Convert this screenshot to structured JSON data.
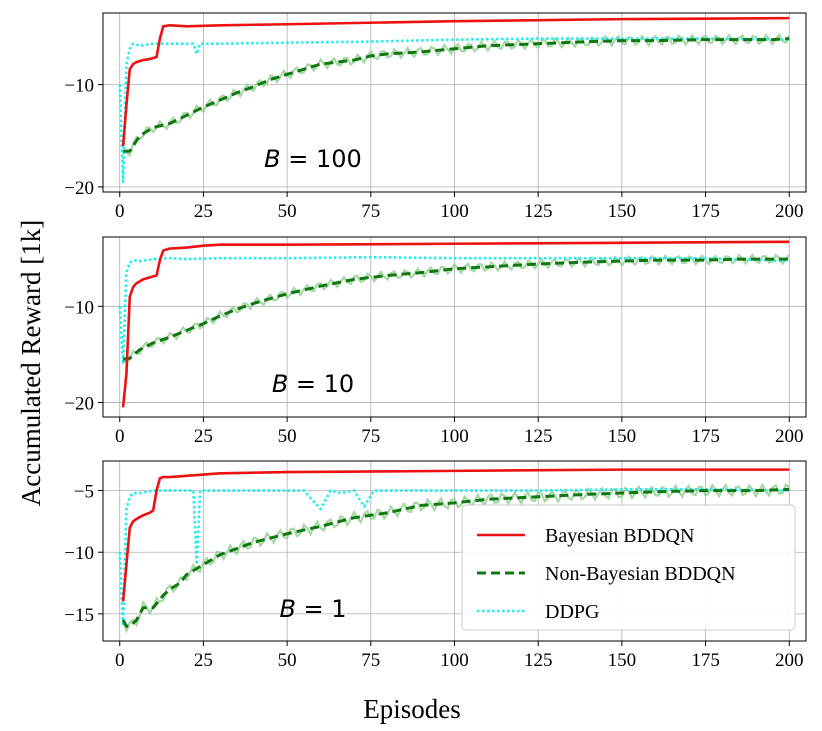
{
  "chart_data": {
    "type": "line",
    "ylabel": "Accumulated Reward [1k]",
    "xlabel": "Episodes",
    "xlim": [
      -5,
      205
    ],
    "xticks": [
      0,
      25,
      50,
      75,
      100,
      125,
      150,
      175,
      200
    ],
    "xtick_labels": [
      "0",
      "25",
      "50",
      "75",
      "100",
      "125",
      "150",
      "175",
      "200"
    ],
    "grid": true,
    "legend": {
      "placement": "bottom-right of lowest panel",
      "entries": [
        {
          "label": "Bayesian BDDQN",
          "color": "#ee1111",
          "style": "solid"
        },
        {
          "label": "Non-Bayesian BDDQN",
          "color": "#117711",
          "style": "dashed"
        },
        {
          "label": "DDPG",
          "color": "#22eeee",
          "style": "dotted"
        }
      ]
    },
    "panels": [
      {
        "annotation_var": "B",
        "annotation_eq": " = 100",
        "ylim": [
          -20.5,
          -3
        ],
        "yticks": [
          -10,
          -20
        ],
        "ytick_labels": [
          "−10",
          "−20"
        ],
        "series": [
          {
            "name": "Bayesian BDDQN",
            "x": [
              1,
              2,
              3,
              4,
              5,
              7,
              9,
              11,
              12,
              13,
              15,
              20,
              30,
              50,
              100,
              150,
              200
            ],
            "y": [
              -16,
              -12,
              -8.5,
              -8,
              -7.8,
              -7.6,
              -7.5,
              -7.3,
              -5.5,
              -4.3,
              -4.2,
              -4.3,
              -4.2,
              -4.1,
              -3.8,
              -3.6,
              -3.5
            ]
          },
          {
            "name": "Non-Bayesian BDDQN",
            "x": [
              1,
              3,
              6,
              10,
              15,
              20,
              25,
              30,
              35,
              40,
              45,
              50,
              60,
              70,
              75,
              80,
              90,
              100,
              110,
              125,
              140,
              150,
              160,
              175,
              185,
              195,
              200
            ],
            "y": [
              -16.5,
              -16.5,
              -15,
              -14.2,
              -13.8,
              -13,
              -12.2,
              -11.5,
              -10.8,
              -10.2,
              -9.5,
              -9,
              -8,
              -7.6,
              -7.2,
              -7,
              -6.8,
              -6.5,
              -6.2,
              -6,
              -5.8,
              -5.7,
              -5.7,
              -5.6,
              -5.6,
              -5.6,
              -5.5
            ]
          },
          {
            "name": "DDPG",
            "x": [
              0,
              1,
              2,
              3,
              4,
              6,
              10,
              20,
              22,
              23,
              24,
              30,
              50,
              75,
              100,
              125,
              150,
              175,
              200
            ],
            "y": [
              -10,
              -19.5,
              -8,
              -6.5,
              -6,
              -6.2,
              -6,
              -6,
              -6,
              -7,
              -6,
              -6,
              -5.9,
              -5.8,
              -5.6,
              -5.5,
              -5.5,
              -5.5,
              -5.6
            ]
          }
        ]
      },
      {
        "annotation_var": "B",
        "annotation_eq": " = 10",
        "ylim": [
          -21.5,
          -2.8
        ],
        "yticks": [
          -10,
          -20
        ],
        "ytick_labels": [
          "−10",
          "−20"
        ],
        "series": [
          {
            "name": "Bayesian BDDQN",
            "x": [
              1,
              2,
              3,
              4,
              5,
              7,
              9,
              11,
              12,
              13,
              15,
              20,
              25,
              30,
              50,
              100,
              150,
              200
            ],
            "y": [
              -20.5,
              -17,
              -9,
              -8,
              -7.6,
              -7.2,
              -7,
              -6.8,
              -5.2,
              -4.2,
              -4.0,
              -3.9,
              -3.7,
              -3.6,
              -3.6,
              -3.5,
              -3.4,
              -3.3
            ]
          },
          {
            "name": "Non-Bayesian BDDQN",
            "x": [
              1,
              3,
              6,
              10,
              15,
              20,
              25,
              30,
              35,
              40,
              45,
              50,
              60,
              70,
              75,
              80,
              90,
              100,
              110,
              125,
              140,
              150,
              160,
              175,
              185,
              195,
              200
            ],
            "y": [
              -15.5,
              -15.4,
              -14.5,
              -13.8,
              -13.2,
              -12.5,
              -11.8,
              -11,
              -10.3,
              -9.7,
              -9.2,
              -8.7,
              -7.9,
              -7.2,
              -7.0,
              -6.8,
              -6.5,
              -6.1,
              -5.9,
              -5.6,
              -5.4,
              -5.3,
              -5.2,
              -5.2,
              -5.1,
              -5.1,
              -5.1
            ]
          },
          {
            "name": "DDPG",
            "x": [
              0,
              1,
              2,
              3,
              4,
              6,
              10,
              15,
              20,
              30,
              50,
              75,
              100,
              125,
              150,
              175,
              200
            ],
            "y": [
              -10,
              -16,
              -6.5,
              -5.5,
              -5.2,
              -5.3,
              -5.1,
              -5.0,
              -5.1,
              -5.0,
              -5.0,
              -4.9,
              -5.0,
              -5.0,
              -5.0,
              -5.0,
              -5.3
            ]
          }
        ]
      },
      {
        "annotation_var": "B",
        "annotation_eq": " = 1",
        "ylim": [
          -17.2,
          -2.6
        ],
        "yticks": [
          -5,
          -10,
          -15
        ],
        "ytick_labels": [
          "−5",
          "−10",
          "−15"
        ],
        "series": [
          {
            "name": "Bayesian BDDQN",
            "x": [
              1,
              2,
              3,
              4,
              5,
              7,
              9,
              10,
              11,
              12,
              13,
              15,
              20,
              25,
              30,
              50,
              100,
              150,
              200
            ],
            "y": [
              -14,
              -11,
              -8,
              -7.5,
              -7.3,
              -7.0,
              -6.8,
              -6.6,
              -5.0,
              -4.0,
              -3.9,
              -3.9,
              -3.8,
              -3.7,
              -3.6,
              -3.5,
              -3.4,
              -3.3,
              -3.3
            ]
          },
          {
            "name": "Non-Bayesian BDDQN",
            "x": [
              1,
              2,
              3,
              5,
              7,
              10,
              13,
              15,
              18,
              20,
              25,
              30,
              40,
              50,
              60,
              70,
              80,
              90,
              100,
              110,
              125,
              140,
              150,
              160,
              175,
              190,
              200
            ],
            "y": [
              -15.5,
              -16,
              -16,
              -15.5,
              -14.5,
              -14.5,
              -13.5,
              -13,
              -12.5,
              -11.8,
              -11,
              -10.2,
              -9.2,
              -8.5,
              -7.9,
              -7.2,
              -6.8,
              -6.2,
              -6.0,
              -5.7,
              -5.5,
              -5.3,
              -5.2,
              -5.1,
              -5.0,
              -5.0,
              -4.9
            ]
          },
          {
            "name": "DDPG",
            "x": [
              0,
              1,
              2,
              3,
              4,
              6,
              10,
              20,
              22,
              23,
              24,
              30,
              55,
              60,
              63,
              66,
              70,
              73,
              76,
              100,
              125,
              150,
              175,
              200
            ],
            "y": [
              -10,
              -16,
              -6.5,
              -5.5,
              -5.2,
              -5.2,
              -5.0,
              -5.0,
              -5.0,
              -11,
              -5.0,
              -5.0,
              -5.0,
              -6.5,
              -5.0,
              -5.2,
              -5.0,
              -6.3,
              -5.0,
              -5.0,
              -5.0,
              -4.9,
              -4.9,
              -5.0
            ]
          }
        ]
      }
    ]
  }
}
